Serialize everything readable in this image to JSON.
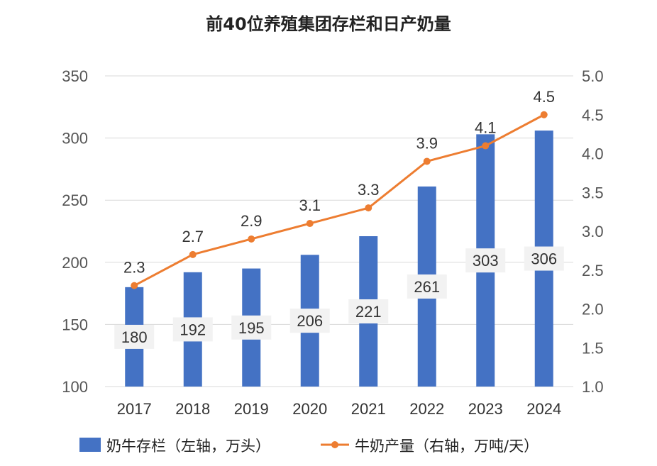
{
  "chart_data": {
    "type": "bar",
    "title": "前40位养殖集团存栏和日产奶量",
    "categories": [
      "2017",
      "2018",
      "2019",
      "2020",
      "2021",
      "2022",
      "2023",
      "2024"
    ],
    "series": [
      {
        "name": "奶牛存栏（左轴，万头）",
        "type": "bar",
        "axis": "left",
        "color": "#4472C4",
        "values": [
          180,
          192,
          195,
          206,
          221,
          261,
          303,
          306
        ]
      },
      {
        "name": "牛奶产量（右轴，万吨/天）",
        "type": "line",
        "axis": "right",
        "color": "#ED7D31",
        "values": [
          2.3,
          2.7,
          2.9,
          3.1,
          3.3,
          3.9,
          4.1,
          4.5
        ]
      }
    ],
    "y_left": {
      "min": 100,
      "max": 350,
      "ticks": [
        "100",
        "150",
        "200",
        "250",
        "300",
        "350"
      ]
    },
    "y_right": {
      "min": 1.0,
      "max": 5.0,
      "ticks": [
        "1.0",
        "1.5",
        "2.0",
        "2.5",
        "3.0",
        "3.5",
        "4.0",
        "4.5",
        "5.0"
      ]
    },
    "grid": true,
    "legend_position": "bottom"
  }
}
